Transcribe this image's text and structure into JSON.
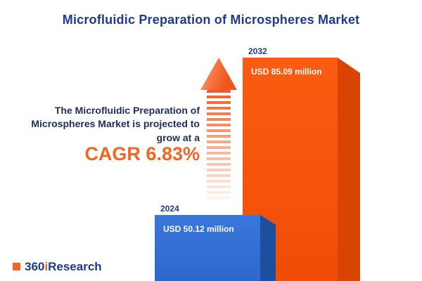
{
  "title": "Microfluidic Preparation of Microspheres Market",
  "chart_data": {
    "type": "bar",
    "title": "Microfluidic Preparation of Microspheres Market",
    "categories": [
      "2024",
      "2032"
    ],
    "values": [
      50.12,
      85.09
    ],
    "unit": "USD million",
    "value_labels": [
      "USD 50.12 million",
      "USD 85.09 million"
    ],
    "annotation": "The Microfluidic Preparation of Microspheres Market is projected to grow at a",
    "cagr_label": "CAGR 6.83%",
    "cagr_percent": 6.83,
    "series_colors": [
      "#3570d6",
      "#f4520c"
    ],
    "accent_color": "#f26522",
    "title_color": "#1e3a8f",
    "legend": "none",
    "grid": false,
    "axes": "none"
  },
  "logo": {
    "parts": [
      "360",
      "i",
      "Research"
    ]
  }
}
